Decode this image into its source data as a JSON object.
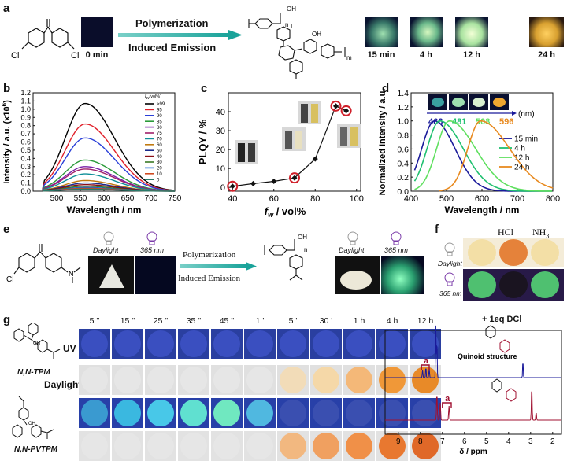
{
  "panels": {
    "a": {
      "label": "a",
      "arrow_top": "Polymerization",
      "arrow_bottom": "Induced Emission",
      "cl_left": "Cl",
      "cl_right": "Cl",
      "oh": "OH",
      "sub_n": "n",
      "sub_m": "m",
      "times": [
        "0 min",
        "15 min",
        "4 h",
        "12 h",
        "24 h"
      ]
    },
    "b": {
      "label": "b"
    },
    "c": {
      "label": "c"
    },
    "d": {
      "label": "d"
    },
    "e": {
      "label": "e",
      "daylight": "Daylight",
      "uv": "365 nm",
      "arrow_top": "Polymerization",
      "arrow_bottom": "Induced Emission",
      "cl": "Cl",
      "n_atom": "N",
      "oh": "OH",
      "sub_n": "n"
    },
    "f": {
      "label": "f",
      "hcl": "HCl",
      "nh3": "NH",
      "nh3_sub": "3",
      "daylight": "Daylight",
      "uv": "365 nm"
    },
    "g": {
      "label": "g",
      "times": [
        "5 ''",
        "15 ''",
        "25 ''",
        "35 ''",
        "45 ''",
        "1 '",
        "5 '",
        "30 '",
        "1 h",
        "4 h",
        "12 h"
      ],
      "uv": "UV",
      "daylight": "Daylight",
      "tpm": "N,N-TPM",
      "pvtpm": "N,N-PVTPM",
      "oh": "OH",
      "dcl": "+ 1eq DCl",
      "quinoid": "Quinoid structure",
      "peak_a": "a",
      "nmr_xlabel": "δ / ppm",
      "nmr_ticks": [
        "9",
        "8",
        "7",
        "6",
        "5",
        "4",
        "3",
        "2"
      ]
    }
  },
  "chart_data": [
    {
      "panel": "b",
      "type": "line",
      "xlabel": "Wavelength / nm",
      "ylabel": "Intensity / a.u. (x10",
      "ylabel_sup": "6",
      "ylabel_end": ")",
      "xlim": [
        450,
        750
      ],
      "ylim": [
        0,
        1.2
      ],
      "xticks": [
        "500",
        "550",
        "600",
        "650",
        "700",
        "750"
      ],
      "yticks": [
        "0.0",
        "0.1",
        "0.2",
        "0.3",
        "0.4",
        "0.5",
        "0.6",
        "0.7",
        "0.8",
        "0.9",
        "1.0",
        "1.1",
        "1.2"
      ],
      "legend_title": "f",
      "legend_title_sub": "w",
      "legend_title_unit": "(vol%)",
      "series": [
        {
          "name": ">99",
          "color": "#000000",
          "peak": 1.07
        },
        {
          "name": "95",
          "color": "#e0202a",
          "peak": 0.82
        },
        {
          "name": "90",
          "color": "#2a3fd8",
          "peak": 0.65
        },
        {
          "name": "85",
          "color": "#2b9a3a",
          "peak": 0.38
        },
        {
          "name": "80",
          "color": "#7a1fa8",
          "peak": 0.3
        },
        {
          "name": "75",
          "color": "#a0206a",
          "peak": 0.27
        },
        {
          "name": "70",
          "color": "#0f8f98",
          "peak": 0.21
        },
        {
          "name": "60",
          "color": "#c07a10",
          "peak": 0.13
        },
        {
          "name": "50",
          "color": "#1a2a8a",
          "peak": 0.1
        },
        {
          "name": "40",
          "color": "#8a0e14",
          "peak": 0.08
        },
        {
          "name": "30",
          "color": "#3a7a26",
          "peak": 0.06
        },
        {
          "name": "20",
          "color": "#1a64d0",
          "peak": 0.045
        },
        {
          "name": "10",
          "color": "#d04a20",
          "peak": 0.035
        },
        {
          "name": "0",
          "color": "#2a7a6a",
          "peak": 0.025
        }
      ]
    },
    {
      "panel": "c",
      "type": "line",
      "xlabel": "f",
      "xlabel_sub": "w",
      "xlabel_unit": " / vol%",
      "ylabel": "PLQY / %",
      "xlim": [
        38,
        102
      ],
      "ylim": [
        -2,
        50
      ],
      "xticks": [
        "40",
        "60",
        "80",
        "100"
      ],
      "yticks": [
        "0",
        "10",
        "20",
        "30",
        "40"
      ],
      "x": [
        40,
        50,
        60,
        70,
        80,
        90,
        95
      ],
      "y": [
        0.6,
        2.0,
        3.2,
        5.0,
        15.0,
        43.0,
        40.5
      ],
      "highlighted": [
        40,
        70,
        90,
        95
      ]
    },
    {
      "panel": "d",
      "type": "line",
      "xlabel": "Wavelength / nm",
      "ylabel": "Normalized Intensity / a.u.",
      "xlim": [
        400,
        800
      ],
      "ylim": [
        0,
        1.4
      ],
      "xticks": [
        "400",
        "500",
        "600",
        "700",
        "800"
      ],
      "yticks": [
        "0.0",
        "0.2",
        "0.4",
        "0.6",
        "0.8",
        "1.0",
        "1.2",
        "1.4"
      ],
      "peak_unit": "(nm)",
      "series": [
        {
          "name": "15 min",
          "peak_nm": 466,
          "peak_label": "466",
          "color": "#1a1a9a"
        },
        {
          "name": "4 h",
          "peak_nm": 481,
          "peak_label": "481",
          "color": "#20c070"
        },
        {
          "name": "12 h",
          "peak_nm": 508,
          "peak_label": "508",
          "color": "#60e060"
        },
        {
          "name": "24 h",
          "peak_nm": 596,
          "peak_label": "596",
          "color": "#e88a20"
        }
      ]
    }
  ]
}
